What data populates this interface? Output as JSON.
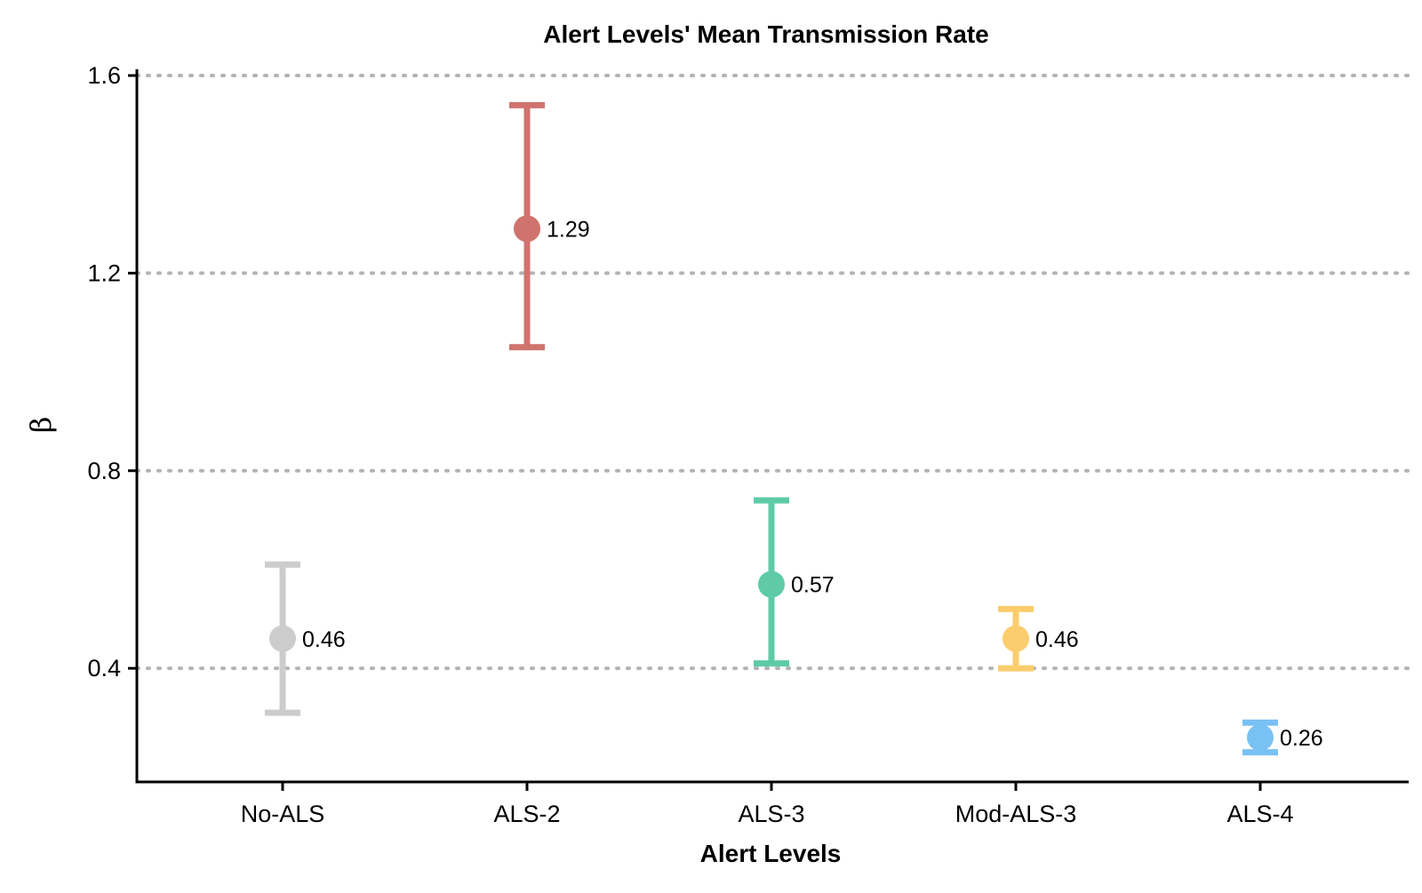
{
  "chart_data": {
    "type": "scatter",
    "title": "Alert Levels' Mean Transmission Rate",
    "xlabel": "Alert Levels",
    "ylabel": "β",
    "categories": [
      "No-ALS",
      "ALS-2",
      "ALS-3",
      "Mod-ALS-3",
      "ALS-4"
    ],
    "values": [
      0.46,
      1.29,
      0.57,
      0.46,
      0.26
    ],
    "value_labels": [
      "0.46",
      "1.29",
      "0.57",
      "0.46",
      "0.26"
    ],
    "error_low": [
      0.31,
      1.05,
      0.41,
      0.4,
      0.23
    ],
    "error_high": [
      0.61,
      1.54,
      0.74,
      0.52,
      0.29
    ],
    "colors": [
      "#cccccc",
      "#d0736f",
      "#5ecba6",
      "#fccd6c",
      "#79c1f5"
    ],
    "ylim": [
      0.17,
      1.6
    ],
    "yticks": [
      0.4,
      0.8,
      1.2,
      1.6
    ],
    "ytick_labels": [
      "0.4",
      "0.8",
      "1.2",
      "1.6"
    ],
    "grid": "horizontal dotted",
    "legend": "none"
  }
}
